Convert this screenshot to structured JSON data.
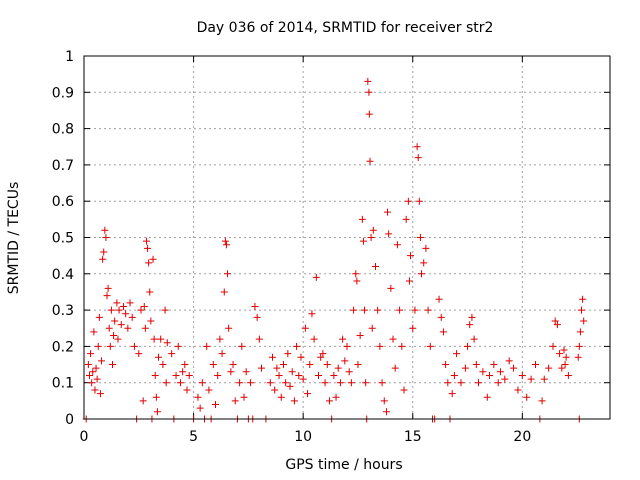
{
  "chart_data": {
    "type": "scatter",
    "title": "Day 036 of 2014, SRMTID for receiver str2",
    "xlabel": "GPS time / hours",
    "ylabel": "SRMTID / TECUs",
    "xlim": [
      0,
      24
    ],
    "ylim": [
      0,
      1
    ],
    "xticks": [
      0,
      5,
      10,
      15,
      20
    ],
    "xtick_labels": [
      "0",
      "5",
      "10",
      "15",
      "20"
    ],
    "yticks": [
      0,
      0.1,
      0.2,
      0.3,
      0.4,
      0.5,
      0.6,
      0.7,
      0.8,
      0.9,
      1
    ],
    "ytick_labels": [
      "0",
      "0.1",
      "0.2",
      "0.3",
      "0.4",
      "0.5",
      "0.6",
      "0.7",
      "0.8",
      "0.9",
      "1"
    ],
    "grid": true,
    "marker": "+",
    "series_color": "#e00000",
    "series": [
      {
        "name": "SRMTID str2",
        "points": [
          [
            0.1,
            0.0
          ],
          [
            0.2,
            0.15
          ],
          [
            0.25,
            0.12
          ],
          [
            0.3,
            0.18
          ],
          [
            0.35,
            0.1
          ],
          [
            0.4,
            0.13
          ],
          [
            0.45,
            0.24
          ],
          [
            0.5,
            0.08
          ],
          [
            0.55,
            0.14
          ],
          [
            0.6,
            0.11
          ],
          [
            0.65,
            0.2
          ],
          [
            0.7,
            0.28
          ],
          [
            0.75,
            0.07
          ],
          [
            0.8,
            0.16
          ],
          [
            0.85,
            0.44
          ],
          [
            0.9,
            0.46
          ],
          [
            0.95,
            0.52
          ],
          [
            1.0,
            0.5
          ],
          [
            1.05,
            0.34
          ],
          [
            1.1,
            0.36
          ],
          [
            1.15,
            0.25
          ],
          [
            1.2,
            0.2
          ],
          [
            1.25,
            0.3
          ],
          [
            1.3,
            0.15
          ],
          [
            1.35,
            0.23
          ],
          [
            1.4,
            0.27
          ],
          [
            1.5,
            0.32
          ],
          [
            1.55,
            0.22
          ],
          [
            1.6,
            0.3
          ],
          [
            1.7,
            0.26
          ],
          [
            1.8,
            0.31
          ],
          [
            1.9,
            0.29
          ],
          [
            2.0,
            0.25
          ],
          [
            2.1,
            0.32
          ],
          [
            2.2,
            0.28
          ],
          [
            2.3,
            0.2
          ],
          [
            2.4,
            0.0
          ],
          [
            2.5,
            0.18
          ],
          [
            2.6,
            0.3
          ],
          [
            2.7,
            0.05
          ],
          [
            2.75,
            0.31
          ],
          [
            2.8,
            0.25
          ],
          [
            2.85,
            0.49
          ],
          [
            2.9,
            0.47
          ],
          [
            2.95,
            0.43
          ],
          [
            3.0,
            0.35
          ],
          [
            3.05,
            0.27
          ],
          [
            3.1,
            0.0
          ],
          [
            3.15,
            0.44
          ],
          [
            3.2,
            0.22
          ],
          [
            3.25,
            0.12
          ],
          [
            3.3,
            0.06
          ],
          [
            3.35,
            0.02
          ],
          [
            3.4,
            0.17
          ],
          [
            3.5,
            0.22
          ],
          [
            3.6,
            0.15
          ],
          [
            3.7,
            0.3
          ],
          [
            3.75,
            0.1
          ],
          [
            3.8,
            0.21
          ],
          [
            4.0,
            0.18
          ],
          [
            4.1,
            0.0
          ],
          [
            4.2,
            0.12
          ],
          [
            4.3,
            0.2
          ],
          [
            4.4,
            0.1
          ],
          [
            4.5,
            0.13
          ],
          [
            4.6,
            0.15
          ],
          [
            4.7,
            0.08
          ],
          [
            4.8,
            0.12
          ],
          [
            5.0,
            0.0
          ],
          [
            5.2,
            0.06
          ],
          [
            5.3,
            0.03
          ],
          [
            5.4,
            0.1
          ],
          [
            5.5,
            0.0
          ],
          [
            5.6,
            0.2
          ],
          [
            5.7,
            0.08
          ],
          [
            5.8,
            0.0
          ],
          [
            5.9,
            0.15
          ],
          [
            6.0,
            0.04
          ],
          [
            6.1,
            0.12
          ],
          [
            6.2,
            0.22
          ],
          [
            6.3,
            0.18
          ],
          [
            6.4,
            0.35
          ],
          [
            6.45,
            0.49
          ],
          [
            6.5,
            0.48
          ],
          [
            6.55,
            0.4
          ],
          [
            6.6,
            0.25
          ],
          [
            6.7,
            0.13
          ],
          [
            6.8,
            0.15
          ],
          [
            6.9,
            0.05
          ],
          [
            7.0,
            0.0
          ],
          [
            7.1,
            0.1
          ],
          [
            7.2,
            0.2
          ],
          [
            7.3,
            0.06
          ],
          [
            7.4,
            0.13
          ],
          [
            7.5,
            0.0
          ],
          [
            7.6,
            0.1
          ],
          [
            7.7,
            0.0
          ],
          [
            7.8,
            0.31
          ],
          [
            7.9,
            0.28
          ],
          [
            8.0,
            0.22
          ],
          [
            8.1,
            0.14
          ],
          [
            8.3,
            0.0
          ],
          [
            8.5,
            0.1
          ],
          [
            8.6,
            0.17
          ],
          [
            8.7,
            0.08
          ],
          [
            8.8,
            0.14
          ],
          [
            8.9,
            0.12
          ],
          [
            9.0,
            0.06
          ],
          [
            9.1,
            0.15
          ],
          [
            9.2,
            0.1
          ],
          [
            9.3,
            0.18
          ],
          [
            9.4,
            0.09
          ],
          [
            9.5,
            0.13
          ],
          [
            9.6,
            0.05
          ],
          [
            9.7,
            0.2
          ],
          [
            9.8,
            0.12
          ],
          [
            9.9,
            0.17
          ],
          [
            10.0,
            0.11
          ],
          [
            10.1,
            0.25
          ],
          [
            10.2,
            0.07
          ],
          [
            10.3,
            0.15
          ],
          [
            10.4,
            0.29
          ],
          [
            10.5,
            0.22
          ],
          [
            10.6,
            0.39
          ],
          [
            10.7,
            0.12
          ],
          [
            10.8,
            0.17
          ],
          [
            10.9,
            0.18
          ],
          [
            11.0,
            0.1
          ],
          [
            11.1,
            0.15
          ],
          [
            11.2,
            0.05
          ],
          [
            11.3,
            0.0
          ],
          [
            11.4,
            0.12
          ],
          [
            11.5,
            0.06
          ],
          [
            11.6,
            0.14
          ],
          [
            11.7,
            0.1
          ],
          [
            11.8,
            0.22
          ],
          [
            11.9,
            0.16
          ],
          [
            12.0,
            0.2
          ],
          [
            12.1,
            0.13
          ],
          [
            12.2,
            0.1
          ],
          [
            12.3,
            0.3
          ],
          [
            12.4,
            0.4
          ],
          [
            12.45,
            0.38
          ],
          [
            12.5,
            0.15
          ],
          [
            12.6,
            0.23
          ],
          [
            12.7,
            0.55
          ],
          [
            12.75,
            0.49
          ],
          [
            12.8,
            0.3
          ],
          [
            12.85,
            0.1
          ],
          [
            12.9,
            0.0
          ],
          [
            12.95,
            0.93
          ],
          [
            13.0,
            0.9
          ],
          [
            13.02,
            0.84
          ],
          [
            13.05,
            0.71
          ],
          [
            13.1,
            0.5
          ],
          [
            13.15,
            0.25
          ],
          [
            13.2,
            0.52
          ],
          [
            13.3,
            0.42
          ],
          [
            13.4,
            0.3
          ],
          [
            13.5,
            0.2
          ],
          [
            13.6,
            0.1
          ],
          [
            13.7,
            0.05
          ],
          [
            13.8,
            0.02
          ],
          [
            13.85,
            0.57
          ],
          [
            13.9,
            0.51
          ],
          [
            14.0,
            0.36
          ],
          [
            14.1,
            0.22
          ],
          [
            14.2,
            0.14
          ],
          [
            14.3,
            0.48
          ],
          [
            14.4,
            0.3
          ],
          [
            14.5,
            0.2
          ],
          [
            14.6,
            0.08
          ],
          [
            14.7,
            0.55
          ],
          [
            14.8,
            0.6
          ],
          [
            14.85,
            0.38
          ],
          [
            14.9,
            0.45
          ],
          [
            15.0,
            0.25
          ],
          [
            15.1,
            0.3
          ],
          [
            15.2,
            0.75
          ],
          [
            15.25,
            0.72
          ],
          [
            15.3,
            0.6
          ],
          [
            15.35,
            0.5
          ],
          [
            15.4,
            0.4
          ],
          [
            15.5,
            0.43
          ],
          [
            15.6,
            0.47
          ],
          [
            15.7,
            0.3
          ],
          [
            15.8,
            0.2
          ],
          [
            15.9,
            0.0
          ],
          [
            16.0,
            0.0
          ],
          [
            16.2,
            0.33
          ],
          [
            16.3,
            0.28
          ],
          [
            16.4,
            0.24
          ],
          [
            16.5,
            0.15
          ],
          [
            16.6,
            0.1
          ],
          [
            16.7,
            0.0
          ],
          [
            16.8,
            0.07
          ],
          [
            16.9,
            0.12
          ],
          [
            17.0,
            0.18
          ],
          [
            17.2,
            0.1
          ],
          [
            17.4,
            0.14
          ],
          [
            17.5,
            0.2
          ],
          [
            17.6,
            0.26
          ],
          [
            17.7,
            0.28
          ],
          [
            17.8,
            0.22
          ],
          [
            17.9,
            0.15
          ],
          [
            18.0,
            0.1
          ],
          [
            18.2,
            0.13
          ],
          [
            18.4,
            0.06
          ],
          [
            18.5,
            0.12
          ],
          [
            18.7,
            0.15
          ],
          [
            18.9,
            0.1
          ],
          [
            19.0,
            0.13
          ],
          [
            19.2,
            0.11
          ],
          [
            19.4,
            0.16
          ],
          [
            19.6,
            0.14
          ],
          [
            19.8,
            0.08
          ],
          [
            20.0,
            0.12
          ],
          [
            20.2,
            0.06
          ],
          [
            20.4,
            0.11
          ],
          [
            20.6,
            0.15
          ],
          [
            20.8,
            0.0
          ],
          [
            20.9,
            0.05
          ],
          [
            21.0,
            0.11
          ],
          [
            21.2,
            0.14
          ],
          [
            21.4,
            0.2
          ],
          [
            21.5,
            0.27
          ],
          [
            21.6,
            0.26
          ],
          [
            21.7,
            0.18
          ],
          [
            21.8,
            0.14
          ],
          [
            21.9,
            0.19
          ],
          [
            22.0,
            0.17
          ],
          [
            22.1,
            0.12
          ],
          [
            22.6,
            0.0
          ],
          [
            22.7,
            0.3
          ],
          [
            22.75,
            0.33
          ],
          [
            22.8,
            0.27
          ],
          [
            22.6,
            0.2
          ],
          [
            22.65,
            0.24
          ],
          [
            22.55,
            0.17
          ],
          [
            21.95,
            0.15
          ]
        ]
      }
    ]
  }
}
